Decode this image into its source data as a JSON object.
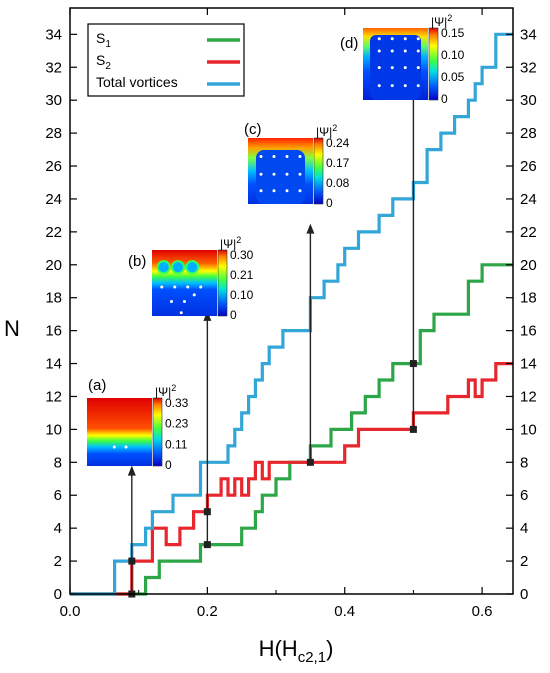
{
  "chart_data": {
    "type": "line",
    "title": "",
    "xlabel": "H(H",
    "xlabel_sub": "c2,1",
    "xlabel_end": ")",
    "ylabel": "N",
    "xlim": [
      0,
      0.645
    ],
    "ylim": [
      0,
      35.6
    ],
    "x_ticks": [
      0.0,
      0.2,
      0.4,
      0.6
    ],
    "x_tick_labels": [
      "0.0",
      "0.2",
      "0.4",
      "0.6"
    ],
    "y_ticks": [
      0,
      2,
      4,
      6,
      8,
      10,
      12,
      14,
      16,
      18,
      20,
      22,
      24,
      26,
      28,
      30,
      32,
      34
    ],
    "y_tick_labels": [
      "0",
      "2",
      "4",
      "6",
      "8",
      "10",
      "12",
      "14",
      "16",
      "18",
      "20",
      "22",
      "24",
      "26",
      "28",
      "30",
      "32",
      "34"
    ],
    "legend": {
      "position": "top-left",
      "entries": [
        {
          "label": "S",
          "sub": "1",
          "color": "#2ca646"
        },
        {
          "label": "S",
          "sub": "2",
          "color": "#e8262e"
        },
        {
          "label": "Total vortices",
          "sub": "",
          "color": "#33a6d8"
        }
      ]
    },
    "series": [
      {
        "name": "S1",
        "color": "#2ca646",
        "x": [
          0.0,
          0.11,
          0.11,
          0.13,
          0.13,
          0.15,
          0.15,
          0.19,
          0.19,
          0.25,
          0.25,
          0.27,
          0.27,
          0.28,
          0.28,
          0.3,
          0.3,
          0.32,
          0.32,
          0.35,
          0.35,
          0.38,
          0.38,
          0.41,
          0.41,
          0.43,
          0.43,
          0.45,
          0.45,
          0.47,
          0.47,
          0.51,
          0.51,
          0.53,
          0.53,
          0.58,
          0.58,
          0.6,
          0.6,
          0.645
        ],
        "y": [
          0,
          0,
          1,
          1,
          2,
          2,
          2,
          2,
          3,
          3,
          4,
          4,
          5,
          5,
          6,
          6,
          7,
          7,
          8,
          8,
          9,
          9,
          10,
          10,
          11,
          11,
          12,
          12,
          13,
          13,
          14,
          14,
          16,
          16,
          17,
          17,
          19,
          19,
          20,
          20
        ]
      },
      {
        "name": "S2",
        "color": "#e8262e",
        "x": [
          0.0,
          0.09,
          0.09,
          0.12,
          0.12,
          0.14,
          0.14,
          0.16,
          0.16,
          0.18,
          0.18,
          0.2,
          0.2,
          0.22,
          0.22,
          0.23,
          0.23,
          0.24,
          0.24,
          0.25,
          0.25,
          0.26,
          0.26,
          0.27,
          0.27,
          0.28,
          0.28,
          0.29,
          0.29,
          0.32,
          0.32,
          0.35,
          0.35,
          0.4,
          0.4,
          0.42,
          0.42,
          0.46,
          0.46,
          0.5,
          0.5,
          0.55,
          0.55,
          0.56,
          0.56,
          0.58,
          0.58,
          0.59,
          0.59,
          0.6,
          0.6,
          0.62,
          0.62,
          0.645
        ],
        "y": [
          0,
          0,
          2,
          2,
          4,
          4,
          3,
          3,
          4,
          4,
          5,
          5,
          6,
          6,
          7,
          7,
          6,
          6,
          7,
          7,
          6,
          6,
          7,
          7,
          8,
          8,
          7,
          7,
          8,
          8,
          8,
          8,
          8,
          8,
          9,
          9,
          10,
          10,
          10,
          10,
          11,
          11,
          12,
          12,
          12,
          12,
          13,
          13,
          12,
          12,
          13,
          13,
          14,
          14
        ]
      },
      {
        "name": "Total vortices",
        "color": "#33a6d8",
        "x": [
          0.0,
          0.065,
          0.065,
          0.09,
          0.09,
          0.11,
          0.11,
          0.12,
          0.12,
          0.15,
          0.15,
          0.19,
          0.19,
          0.21,
          0.21,
          0.23,
          0.23,
          0.24,
          0.24,
          0.25,
          0.25,
          0.26,
          0.26,
          0.27,
          0.27,
          0.28,
          0.28,
          0.29,
          0.29,
          0.3,
          0.3,
          0.31,
          0.31,
          0.32,
          0.32,
          0.35,
          0.35,
          0.37,
          0.37,
          0.39,
          0.39,
          0.4,
          0.4,
          0.42,
          0.42,
          0.45,
          0.45,
          0.47,
          0.47,
          0.5,
          0.5,
          0.52,
          0.52,
          0.54,
          0.54,
          0.56,
          0.56,
          0.58,
          0.58,
          0.59,
          0.59,
          0.6,
          0.6,
          0.62,
          0.62,
          0.645
        ],
        "y": [
          0,
          0,
          2,
          2,
          3,
          3,
          4,
          4,
          5,
          5,
          6,
          6,
          8,
          8,
          8,
          8,
          9,
          9,
          10,
          10,
          11,
          11,
          12,
          12,
          13,
          13,
          14,
          14,
          15,
          15,
          15,
          15,
          16,
          16,
          16,
          16,
          18,
          18,
          19,
          19,
          20,
          20,
          21,
          21,
          22,
          22,
          23,
          23,
          24,
          24,
          25,
          25,
          27,
          27,
          28,
          28,
          29,
          29,
          30,
          30,
          31,
          31,
          32,
          32,
          34,
          34
        ]
      }
    ],
    "markers": [
      {
        "x": 0.09,
        "y": 0
      },
      {
        "x": 0.09,
        "y": 2
      },
      {
        "x": 0.2,
        "y": 3
      },
      {
        "x": 0.2,
        "y": 5
      },
      {
        "x": 0.35,
        "y": 8
      },
      {
        "x": 0.5,
        "y": 10
      },
      {
        "x": 0.5,
        "y": 14
      }
    ],
    "arrows": [
      {
        "x": 0.09,
        "from_y": 0,
        "to_y": 7.8,
        "panel": "a"
      },
      {
        "x": 0.2,
        "from_y": 3,
        "to_y": 17.2,
        "panel": "b"
      },
      {
        "x": 0.35,
        "from_y": 8,
        "to_y": 22.5,
        "panel": "c"
      },
      {
        "x": 0.5,
        "from_y": 10,
        "to_y": 32.0,
        "panel": "d"
      }
    ],
    "insets": [
      {
        "id": "a",
        "label": "(a)",
        "psi_label": "|Ψ|",
        "sup": "2",
        "ticks": [
          "0.33",
          "0.23",
          "0.11",
          "0"
        ]
      },
      {
        "id": "b",
        "label": "(b)",
        "psi_label": "|Ψ|",
        "sup": "2",
        "ticks": [
          "0.30",
          "0.21",
          "0.10",
          "0"
        ]
      },
      {
        "id": "c",
        "label": "(c)",
        "psi_label": "|Ψ|",
        "sup": "2",
        "ticks": [
          "0.24",
          "0.17",
          "0.08",
          "0"
        ]
      },
      {
        "id": "d",
        "label": "(d)",
        "psi_label": "|Ψ|",
        "sup": "2",
        "ticks": [
          "0.15",
          "0.10",
          "0.05",
          "0"
        ]
      }
    ]
  }
}
